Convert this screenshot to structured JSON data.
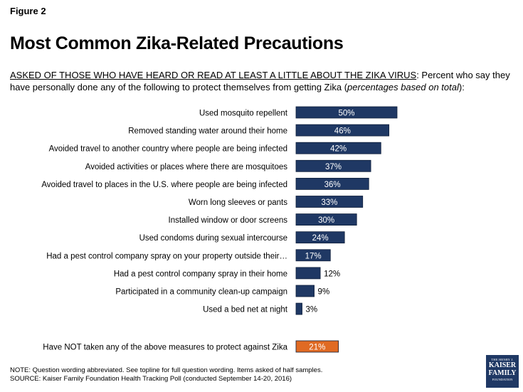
{
  "header": {
    "figure_label": "Figure 2",
    "title": "Most Common Zika-Related Precautions",
    "subtitle_underlined": "ASKED OF THOSE WHO HAVE HEARD OR READ AT LEAST A LITTLE ABOUT THE ZIKA VIRUS",
    "subtitle_text": ": Percent who say they have personally done any of the following to protect themselves from getting Zika (",
    "subtitle_italic": "percentages based on total",
    "subtitle_end": "):"
  },
  "chart_data": {
    "type": "bar",
    "orientation": "horizontal",
    "categories": [
      "Used mosquito repellent",
      "Removed standing water around their home",
      "Avoided travel to another country where people are being infected",
      "Avoided activities or places where there are mosquitoes",
      "Avoided travel to places in the U.S. where people are being infected",
      "Worn long sleeves or pants",
      "Installed window or door screens",
      "Used condoms during sexual intercourse",
      "Had a pest control company spray on your property outside their…",
      "Had a pest control company spray in their home",
      "Participated in a community clean-up campaign",
      "Used a bed net at night"
    ],
    "values": [
      50,
      46,
      42,
      37,
      36,
      33,
      30,
      24,
      17,
      12,
      9,
      3
    ],
    "labels": [
      "50%",
      "46%",
      "42%",
      "37%",
      "36%",
      "33%",
      "30%",
      "24%",
      "17%",
      "12%",
      "9%",
      "3%"
    ],
    "extra_bar": {
      "category": "Have NOT taken any of the above measures to protect against Zika",
      "value": 21,
      "label": "21%"
    },
    "colors": {
      "main": "#1f3864",
      "extra": "#e06a23",
      "border": "#0f1f3a",
      "label_inside": "#ffffff",
      "label_outside": "#000000"
    },
    "xlim": [
      0,
      100
    ],
    "grid": false,
    "legend": "none"
  },
  "notes": {
    "note": "NOTE: Question wording abbreviated. See topline for full question wording. Items asked of half samples.",
    "source": "SOURCE: Kaiser Family Foundation Health Tracking Poll (conducted September 14-20, 2016)"
  },
  "logo": {
    "line1": "THE HENRY J.",
    "line2": "KAISER",
    "line3": "FAMILY",
    "line4": "FOUNDATION"
  }
}
